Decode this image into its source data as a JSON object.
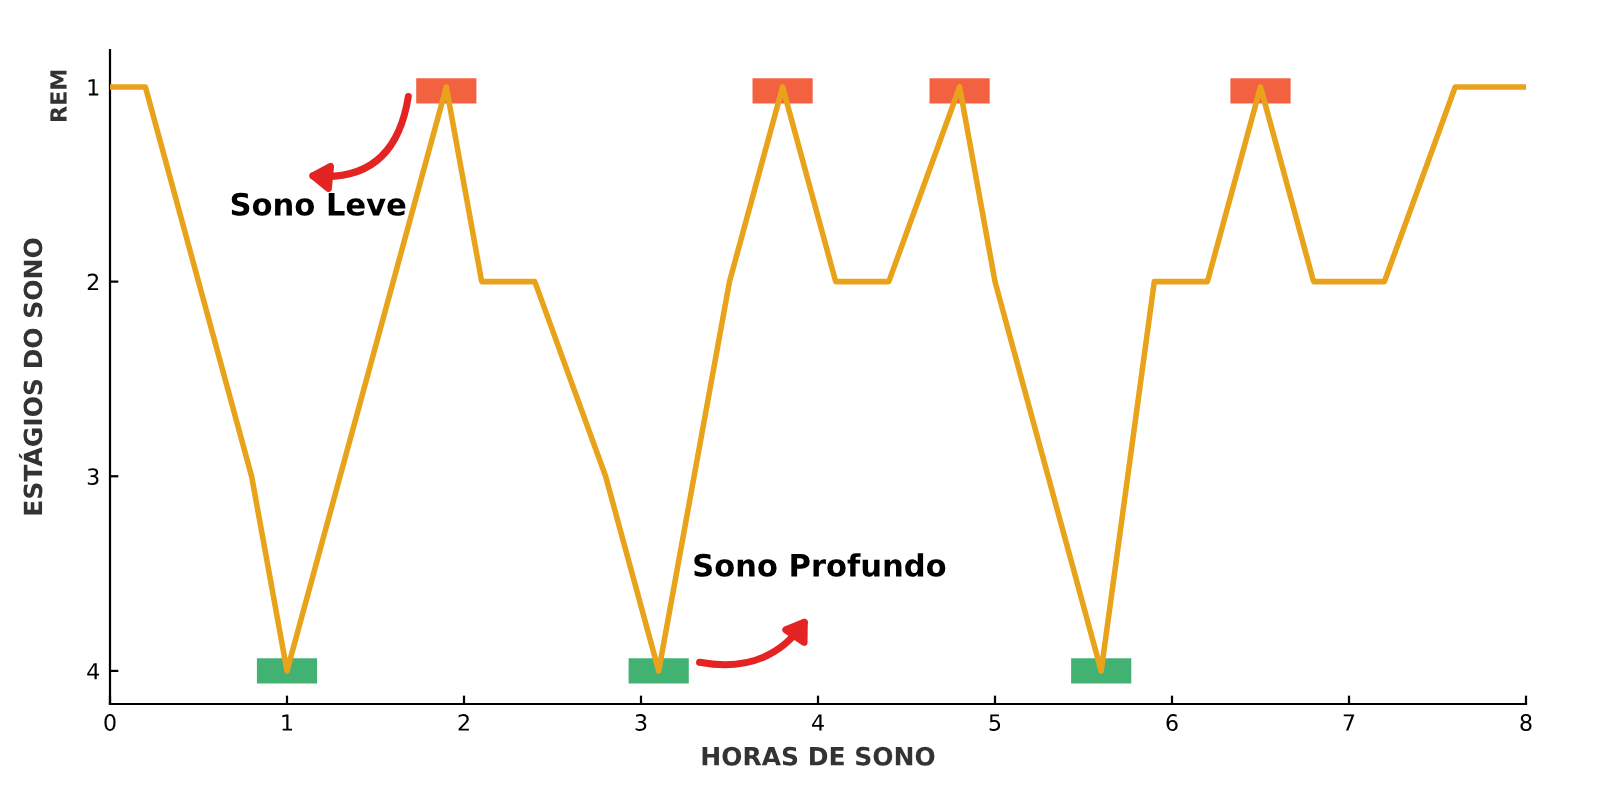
{
  "chart_data": {
    "type": "line",
    "xlabel": "HORAS DE SONO",
    "ylabel": "ESTÁGIOS DO SONO",
    "x": [
      0,
      0.2,
      0.8,
      1,
      1.9,
      2.1,
      2.4,
      2.8,
      3.1,
      3.5,
      3.8,
      4.1,
      4.4,
      4.8,
      5,
      5.6,
      5.9,
      6.2,
      6.5,
      6.8,
      7.2,
      7.6,
      8
    ],
    "series": [
      {
        "color": "#e9a31a",
        "values": [
          1,
          1,
          3,
          4,
          1,
          2,
          2,
          3,
          4,
          2,
          1,
          2,
          2,
          1,
          2,
          4,
          2,
          2,
          1,
          2,
          2,
          1,
          1
        ]
      }
    ],
    "xlim": [
      0,
      8
    ],
    "xticks": [
      0,
      1,
      2,
      3,
      4,
      5,
      6,
      7,
      8
    ],
    "ylim": [
      4.17,
      0.81
    ],
    "yticks": [
      1,
      2,
      3,
      4
    ],
    "annotations": [
      "REM",
      "Sono Leve",
      "Sono Profundo"
    ],
    "grid": false,
    "legend": false,
    "marker": "none",
    "line_style": "solid"
  }
}
